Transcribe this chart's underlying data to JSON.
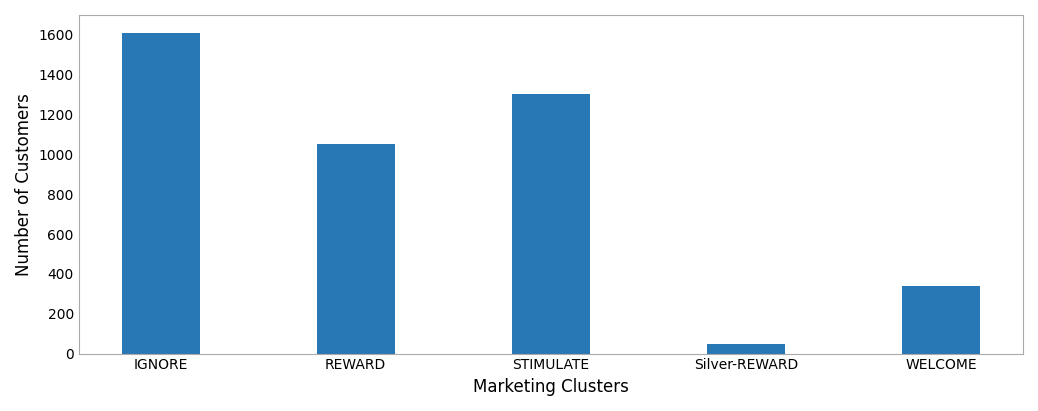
{
  "categories": [
    "IGNORE",
    "REWARD",
    "STIMULATE",
    "Silver-REWARD",
    "WELCOME"
  ],
  "values": [
    1610,
    1050,
    1305,
    50,
    338
  ],
  "bar_color": "#2878b5",
  "xlabel": "Marketing Clusters",
  "ylabel": "Number of Customers",
  "ylim": [
    0,
    1700
  ],
  "yticks": [
    0,
    200,
    400,
    600,
    800,
    1000,
    1200,
    1400,
    1600
  ],
  "background_color": "#ffffff",
  "bar_width": 0.4,
  "spine_color": "#aaaaaa",
  "tick_fontsize": 10,
  "label_fontsize": 12
}
